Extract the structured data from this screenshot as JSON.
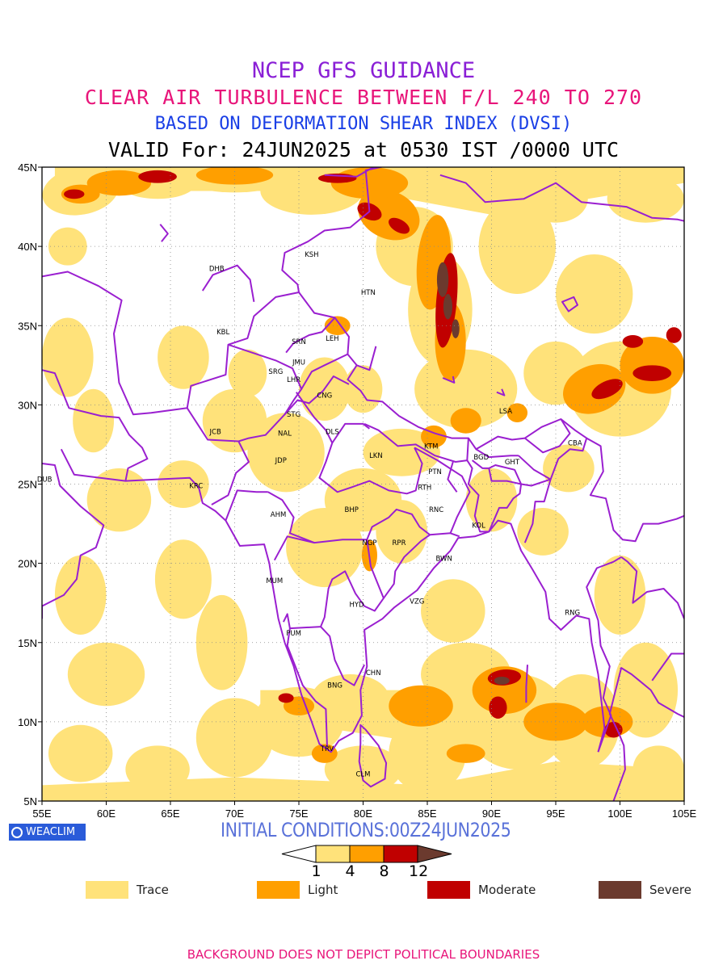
{
  "title": {
    "line1": "NCEP GFS GUIDANCE",
    "line2": "CLEAR AIR TURBULENCE BETWEEN F/L 240 TO 270",
    "line3": "BASED ON DEFORMATION SHEAR INDEX (DVSI)",
    "line4": "VALID For: 24JUN2025 at 0530 IST /0000 UTC"
  },
  "axes": {
    "lat_labels": [
      "45N",
      "40N",
      "35N",
      "30N",
      "25N",
      "20N",
      "15N",
      "10N",
      "5N"
    ],
    "lon_labels": [
      "55E",
      "60E",
      "65E",
      "70E",
      "75E",
      "80E",
      "85E",
      "90E",
      "95E",
      "100E",
      "105E"
    ]
  },
  "stations": [
    {
      "code": "KSH",
      "lon": 76.0,
      "lat": 39.5
    },
    {
      "code": "DHB",
      "lon": 68.6,
      "lat": 38.6
    },
    {
      "code": "HTN",
      "lon": 80.4,
      "lat": 37.1
    },
    {
      "code": "KBL",
      "lon": 69.1,
      "lat": 34.6
    },
    {
      "code": "LEH",
      "lon": 77.6,
      "lat": 34.2
    },
    {
      "code": "SRN",
      "lon": 75.0,
      "lat": 34.0
    },
    {
      "code": "JMU",
      "lon": 75.0,
      "lat": 32.7
    },
    {
      "code": "SRG",
      "lon": 73.2,
      "lat": 32.1
    },
    {
      "code": "LHR",
      "lon": 74.6,
      "lat": 31.6
    },
    {
      "code": "CNG",
      "lon": 77.0,
      "lat": 30.6
    },
    {
      "code": "LSA",
      "lon": 91.1,
      "lat": 29.6
    },
    {
      "code": "STG",
      "lon": 74.6,
      "lat": 29.4
    },
    {
      "code": "JCB",
      "lon": 68.5,
      "lat": 28.3
    },
    {
      "code": "DLS",
      "lon": 77.6,
      "lat": 28.3
    },
    {
      "code": "NAL",
      "lon": 73.9,
      "lat": 28.2
    },
    {
      "code": "CBA",
      "lon": 96.5,
      "lat": 27.6
    },
    {
      "code": "KTM",
      "lon": 85.3,
      "lat": 27.4
    },
    {
      "code": "LKN",
      "lon": 81.0,
      "lat": 26.8
    },
    {
      "code": "BGD",
      "lon": 89.2,
      "lat": 26.7
    },
    {
      "code": "GHT",
      "lon": 91.6,
      "lat": 26.4
    },
    {
      "code": "JDP",
      "lon": 73.6,
      "lat": 26.5
    },
    {
      "code": "PTN",
      "lon": 85.6,
      "lat": 25.8
    },
    {
      "code": "DUB",
      "lon": 55.2,
      "lat": 25.3
    },
    {
      "code": "KRC",
      "lon": 67.0,
      "lat": 24.9
    },
    {
      "code": "RTH",
      "lon": 84.8,
      "lat": 24.8
    },
    {
      "code": "BHP",
      "lon": 79.1,
      "lat": 23.4
    },
    {
      "code": "AHM",
      "lon": 73.4,
      "lat": 23.1
    },
    {
      "code": "RNC",
      "lon": 85.7,
      "lat": 23.4
    },
    {
      "code": "KOL",
      "lon": 89.0,
      "lat": 22.4
    },
    {
      "code": "NGP",
      "lon": 80.5,
      "lat": 21.3
    },
    {
      "code": "RPR",
      "lon": 82.8,
      "lat": 21.3
    },
    {
      "code": "BWN",
      "lon": 86.3,
      "lat": 20.3
    },
    {
      "code": "MUM",
      "lon": 73.1,
      "lat": 18.9
    },
    {
      "code": "HYD",
      "lon": 79.5,
      "lat": 17.4
    },
    {
      "code": "VZG",
      "lon": 84.2,
      "lat": 17.6
    },
    {
      "code": "RNG",
      "lon": 96.3,
      "lat": 16.9
    },
    {
      "code": "PUM",
      "lon": 74.6,
      "lat": 15.6
    },
    {
      "code": "CHN",
      "lon": 80.8,
      "lat": 13.1
    },
    {
      "code": "BNG",
      "lon": 77.8,
      "lat": 12.3
    },
    {
      "code": "TRV",
      "lon": 77.2,
      "lat": 8.3
    },
    {
      "code": "CLM",
      "lon": 80.0,
      "lat": 6.7
    }
  ],
  "colorbar": {
    "levels": [
      "1",
      "4",
      "8",
      "12"
    ],
    "colors": [
      "#ffe27a",
      "#ff9f00",
      "#c00000",
      "#6b3a2e"
    ]
  },
  "legend": [
    {
      "label": "Trace",
      "color": "#ffe27a"
    },
    {
      "label": "Light",
      "color": "#ff9f00"
    },
    {
      "label": "Moderate",
      "color": "#c00000"
    },
    {
      "label": "Severe",
      "color": "#6b3a2e"
    }
  ],
  "badge": "WEACLIM",
  "initial_conditions": "INITIAL CONDITIONS:00Z24JUN2025",
  "footer": "BACKGROUND DOES NOT DEPICT POLITICAL BOUNDARIES",
  "colors": {
    "boundary": "#9a1fd0",
    "trace": "#ffe27a",
    "light": "#ff9f00",
    "moderate": "#c00000",
    "severe": "#6b3a2e"
  }
}
